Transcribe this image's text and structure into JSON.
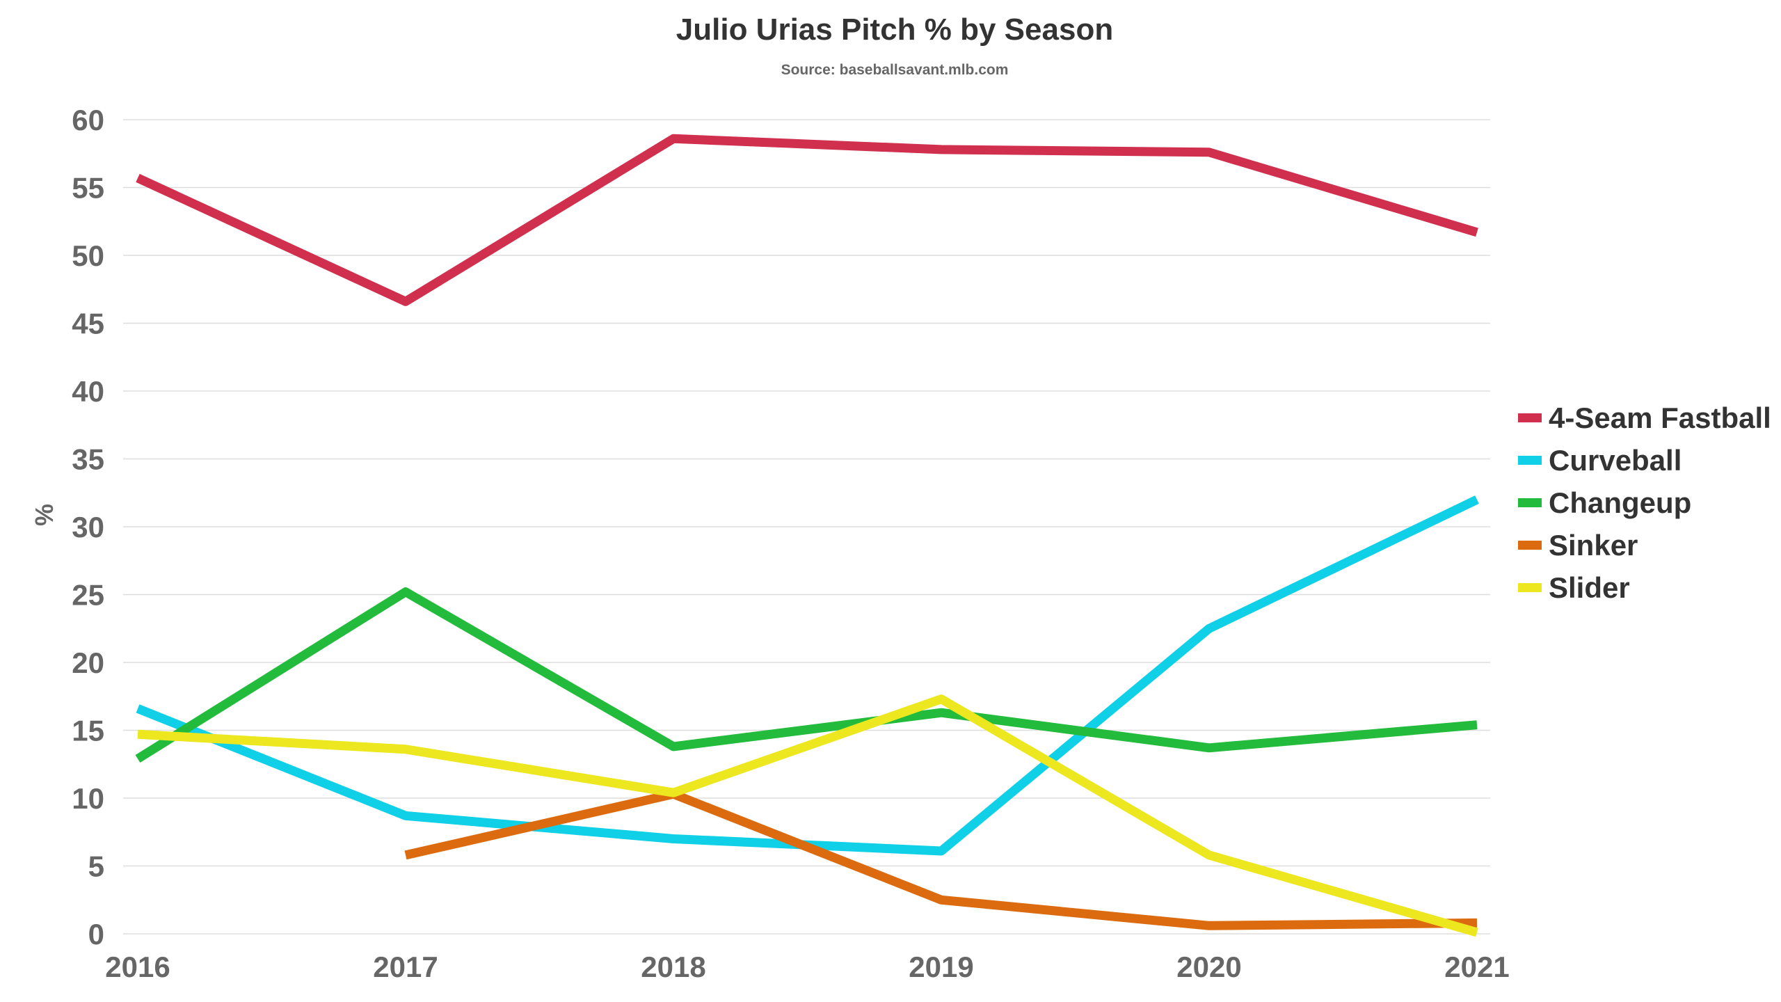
{
  "chart_data": {
    "type": "line",
    "title": "Julio Urias Pitch % by Season",
    "subtitle": "Source: baseballsavant.mlb.com",
    "xlabel": "",
    "ylabel": "%",
    "categories": [
      "2016",
      "2017",
      "2018",
      "2019",
      "2020",
      "2021"
    ],
    "ylim": [
      0,
      60
    ],
    "yticks": [
      0,
      5,
      10,
      15,
      20,
      25,
      30,
      35,
      40,
      45,
      50,
      55,
      60
    ],
    "grid": true,
    "legend_position": "right",
    "series": [
      {
        "name": "4-Seam Fastball",
        "color": "#d0304e",
        "values": [
          55.7,
          46.6,
          58.6,
          57.8,
          57.6,
          51.7
        ]
      },
      {
        "name": "Curveball",
        "color": "#0fd0e6",
        "values": [
          16.6,
          8.7,
          7.0,
          6.1,
          22.5,
          32.0
        ]
      },
      {
        "name": "Changeup",
        "color": "#22bb3c",
        "values": [
          12.9,
          25.2,
          13.8,
          16.3,
          13.7,
          15.4
        ]
      },
      {
        "name": "Sinker",
        "color": "#dc6b10",
        "values": [
          null,
          5.8,
          10.3,
          2.5,
          0.6,
          0.8
        ]
      },
      {
        "name": "Slider",
        "color": "#ece71f",
        "values": [
          14.7,
          13.6,
          10.4,
          17.3,
          5.8,
          0.1
        ]
      }
    ]
  }
}
